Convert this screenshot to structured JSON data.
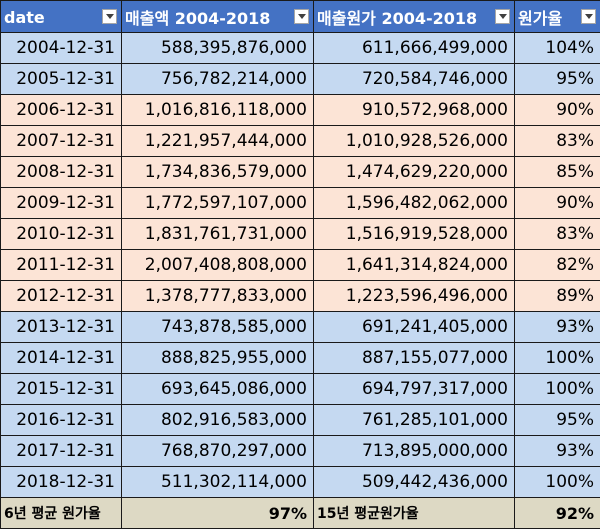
{
  "colors": {
    "header_bg": "#4472c4",
    "row_blue": "#c5d9f1",
    "row_peach": "#fce4d6",
    "footer_bg": "#ddd9c4"
  },
  "header": {
    "date": "date",
    "sales": "매출액 2004-2018",
    "cost": "매출원가 2004-2018",
    "ratio": "원가율"
  },
  "rows": [
    {
      "date": "2004-12-31",
      "sales": "588,395,876,000",
      "cost": "611,666,499,000",
      "ratio": "104%",
      "tone": "blue"
    },
    {
      "date": "2005-12-31",
      "sales": "756,782,214,000",
      "cost": "720,584,746,000",
      "ratio": "95%",
      "tone": "blue"
    },
    {
      "date": "2006-12-31",
      "sales": "1,016,816,118,000",
      "cost": "910,572,968,000",
      "ratio": "90%",
      "tone": "peach"
    },
    {
      "date": "2007-12-31",
      "sales": "1,221,957,444,000",
      "cost": "1,010,928,526,000",
      "ratio": "83%",
      "tone": "peach"
    },
    {
      "date": "2008-12-31",
      "sales": "1,734,836,579,000",
      "cost": "1,474,629,220,000",
      "ratio": "85%",
      "tone": "peach"
    },
    {
      "date": "2009-12-31",
      "sales": "1,772,597,107,000",
      "cost": "1,596,482,062,000",
      "ratio": "90%",
      "tone": "peach"
    },
    {
      "date": "2010-12-31",
      "sales": "1,831,761,731,000",
      "cost": "1,516,919,528,000",
      "ratio": "83%",
      "tone": "peach"
    },
    {
      "date": "2011-12-31",
      "sales": "2,007,408,808,000",
      "cost": "1,641,314,824,000",
      "ratio": "82%",
      "tone": "peach"
    },
    {
      "date": "2012-12-31",
      "sales": "1,378,777,833,000",
      "cost": "1,223,596,496,000",
      "ratio": "89%",
      "tone": "peach"
    },
    {
      "date": "2013-12-31",
      "sales": "743,878,585,000",
      "cost": "691,241,405,000",
      "ratio": "93%",
      "tone": "blue"
    },
    {
      "date": "2014-12-31",
      "sales": "888,825,955,000",
      "cost": "887,155,077,000",
      "ratio": "100%",
      "tone": "blue"
    },
    {
      "date": "2015-12-31",
      "sales": "693,645,086,000",
      "cost": "694,797,317,000",
      "ratio": "100%",
      "tone": "blue"
    },
    {
      "date": "2016-12-31",
      "sales": "802,916,583,000",
      "cost": "761,285,101,000",
      "ratio": "95%",
      "tone": "blue"
    },
    {
      "date": "2017-12-31",
      "sales": "768,870,297,000",
      "cost": "713,895,000,000",
      "ratio": "93%",
      "tone": "blue"
    },
    {
      "date": "2018-12-31",
      "sales": "511,302,114,000",
      "cost": "509,442,436,000",
      "ratio": "100%",
      "tone": "blue"
    }
  ],
  "footer": {
    "label_6y": "6년 평균 원가율",
    "value_6y": "97%",
    "label_15y": "15년 평균원가율",
    "value_15y": "92%"
  }
}
